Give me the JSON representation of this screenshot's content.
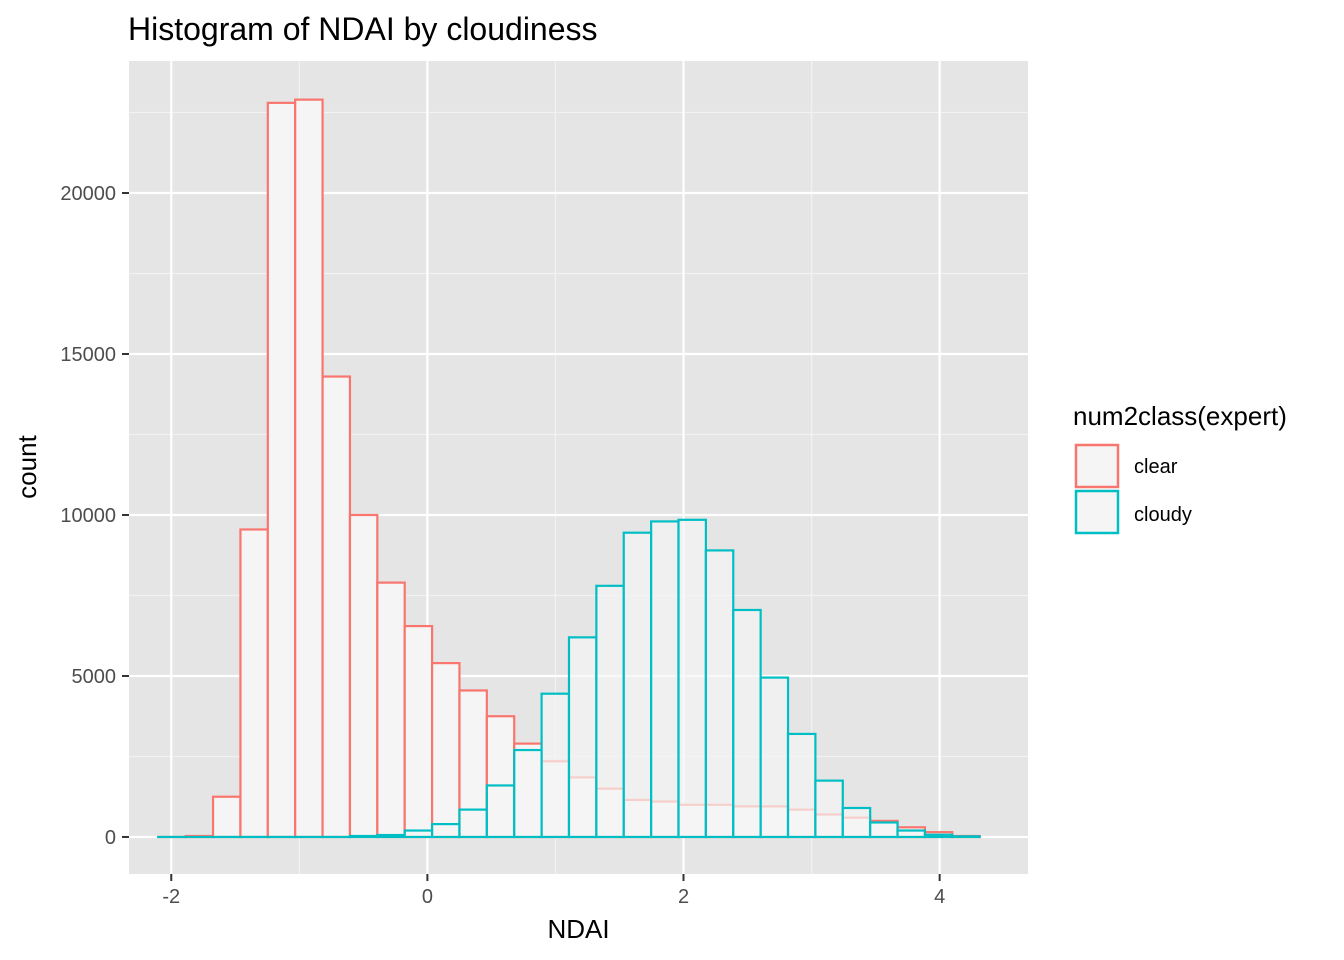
{
  "chart_data": {
    "type": "bar",
    "title": "Histogram of NDAI by cloudiness",
    "xlabel": "NDAI",
    "ylabel": "count",
    "xlim": [
      -2.33,
      4.69
    ],
    "ylim": [
      -1150,
      24100
    ],
    "x_ticks": [
      -2,
      0,
      2,
      4
    ],
    "x_tick_labels": [
      "-2",
      "0",
      "2",
      "4"
    ],
    "y_ticks": [
      0,
      5000,
      10000,
      15000,
      20000
    ],
    "y_tick_labels": [
      "0",
      "5000",
      "10000",
      "15000",
      "20000"
    ],
    "bin_width": 0.2138,
    "bin_centers": [
      -1.9944,
      -1.7806,
      -1.5668,
      -1.353,
      -1.1392,
      -0.9254,
      -0.7116,
      -0.4978,
      -0.284,
      -0.0702,
      0.1436,
      0.3574,
      0.5712,
      0.785,
      0.9988,
      1.2126,
      1.4264,
      1.6402,
      1.854,
      2.0678,
      2.2816,
      2.4954,
      2.7092,
      2.923,
      3.1368,
      3.3506,
      3.5644,
      3.7782,
      3.992,
      4.2058
    ],
    "grid": true,
    "fill_color": "#F5F5F5",
    "panel_background": "#E5E5E5",
    "legend": {
      "title": "num2class(expert)",
      "position": "right"
    },
    "series": [
      {
        "name": "clear",
        "color": "#F8766D",
        "values": [
          0,
          30,
          1250,
          9550,
          22800,
          22900,
          14300,
          10000,
          7900,
          6550,
          5400,
          4550,
          3750,
          2900,
          2350,
          1850,
          1500,
          1150,
          1100,
          1000,
          1000,
          950,
          950,
          850,
          700,
          600,
          500,
          300,
          150,
          30
        ]
      },
      {
        "name": "cloudy",
        "color": "#00BFC4",
        "values": [
          0,
          0,
          0,
          0,
          0,
          0,
          0,
          30,
          60,
          200,
          400,
          850,
          1600,
          2700,
          4450,
          6200,
          7800,
          9450,
          9800,
          9850,
          8900,
          7050,
          4950,
          3200,
          1750,
          900,
          450,
          200,
          70,
          20
        ]
      }
    ]
  }
}
